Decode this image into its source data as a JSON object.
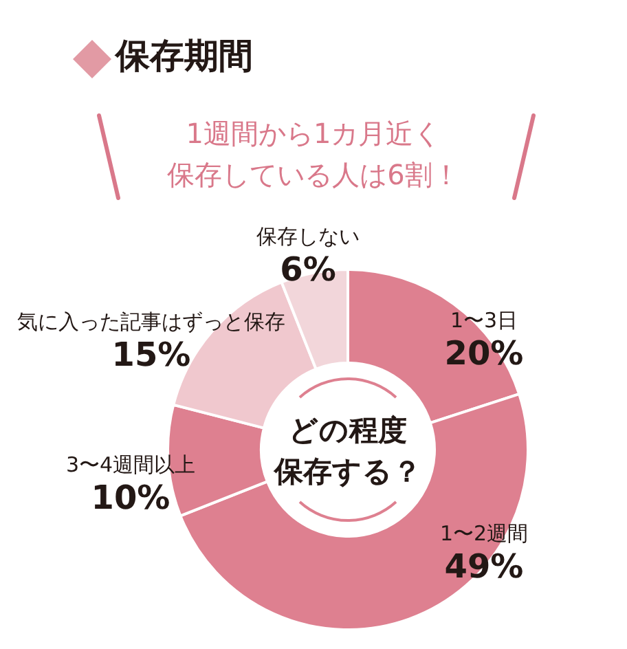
{
  "chart_data": {
    "type": "donut",
    "title": "保存期間",
    "subtitle": "1週間から1カ月近く",
    "categories": [
      "1〜3日",
      "1〜2週間",
      "3〜4週間以上",
      "気に入った記事はずっと保存",
      "保存しない"
    ],
    "values": [
      20,
      49,
      10,
      15,
      6
    ],
    "value_labels": [
      "20%",
      "49%",
      "10%",
      "15%",
      "6%"
    ],
    "colors": [
      "#de8090",
      "#de8090",
      "#de8090",
      "#f0c8ce",
      "#f2d6da"
    ],
    "annotations": [
      "保存している人は6割！",
      "どの程度",
      "保存する？"
    ],
    "legend": false
  }
}
